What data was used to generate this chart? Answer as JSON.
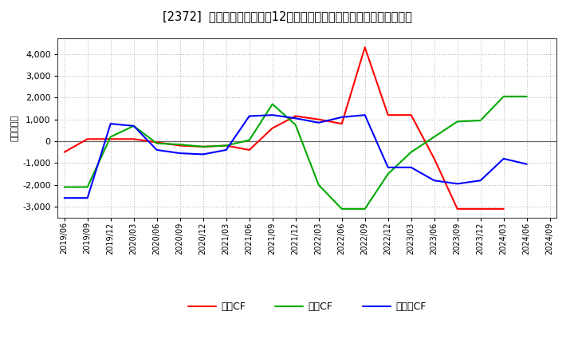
{
  "title": "[2372]  キャッシュフローの12か月移動合計の対前年同期増減額の推移",
  "ylabel": "（百万円）",
  "x_labels": [
    "2019/06",
    "2019/09",
    "2019/12",
    "2020/03",
    "2020/06",
    "2020/09",
    "2020/12",
    "2021/03",
    "2021/06",
    "2021/09",
    "2021/12",
    "2022/03",
    "2022/06",
    "2022/09",
    "2022/12",
    "2023/03",
    "2023/06",
    "2023/09",
    "2023/12",
    "2024/03",
    "2024/06",
    "2024/09"
  ],
  "operating_cf": [
    -500,
    100,
    100,
    100,
    -50,
    -200,
    -250,
    -200,
    -400,
    600,
    1150,
    1000,
    800,
    4300,
    1200,
    1200,
    -800,
    -3100,
    -3100,
    -3100,
    null,
    null
  ],
  "investing_cf": [
    -2100,
    -2100,
    200,
    700,
    -100,
    -150,
    -250,
    -200,
    50,
    1700,
    750,
    -2000,
    -3100,
    -3100,
    -1500,
    -500,
    200,
    900,
    950,
    2050,
    2050,
    null
  ],
  "free_cf": [
    -2600,
    -2600,
    800,
    700,
    -400,
    -550,
    -600,
    -400,
    1150,
    1200,
    1050,
    850,
    1100,
    1200,
    -1200,
    -1200,
    -1800,
    -1950,
    -1800,
    -800,
    -1050,
    null
  ],
  "ylim": [
    -3500,
    4700
  ],
  "yticks": [
    -3000,
    -2000,
    -1000,
    0,
    1000,
    2000,
    3000,
    4000
  ],
  "colors": {
    "operating": "#ff0000",
    "investing": "#00aa00",
    "free": "#0000ff"
  },
  "legend_labels": [
    "営業CF",
    "投資CF",
    "フリーCF"
  ],
  "bg_color": "#ffffff",
  "plot_bg_color": "#ffffff",
  "grid_color": "#aaaaaa",
  "zero_line_color": "#666666"
}
